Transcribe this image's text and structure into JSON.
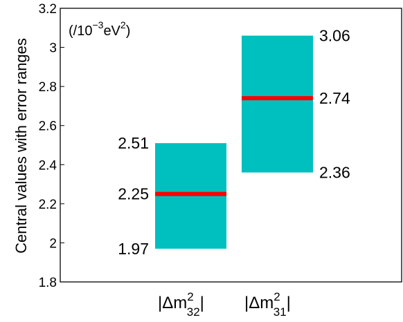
{
  "chart_data": {
    "type": "bar",
    "title": "",
    "ylabel": "Central values with error ranges",
    "unit_label": {
      "prefix": "(/10",
      "exp": "−3",
      "mid": "eV",
      "exp2": "2",
      "suffix": ")"
    },
    "ylim": [
      1.8,
      3.2
    ],
    "yticks": [
      "1.8",
      "2",
      "2.2",
      "2.4",
      "2.6",
      "2.8",
      "3",
      "3.2"
    ],
    "grid": false,
    "box_color": "#00BFBF",
    "central_color": "#FF0000",
    "categories": [
      {
        "label_pre": "|Δm",
        "sup": "2",
        "sub": "32",
        "label_post": "|",
        "low": 1.97,
        "central": 2.25,
        "high": 2.51,
        "low_label": "1.97",
        "central_label": "2.25",
        "high_label": "2.51",
        "label_side": "left"
      },
      {
        "label_pre": "|Δm",
        "sup": "2",
        "sub": "31",
        "label_post": "|",
        "low": 2.36,
        "central": 2.74,
        "high": 3.06,
        "low_label": "2.36",
        "central_label": "2.74",
        "high_label": "3.06",
        "label_side": "right"
      }
    ]
  }
}
